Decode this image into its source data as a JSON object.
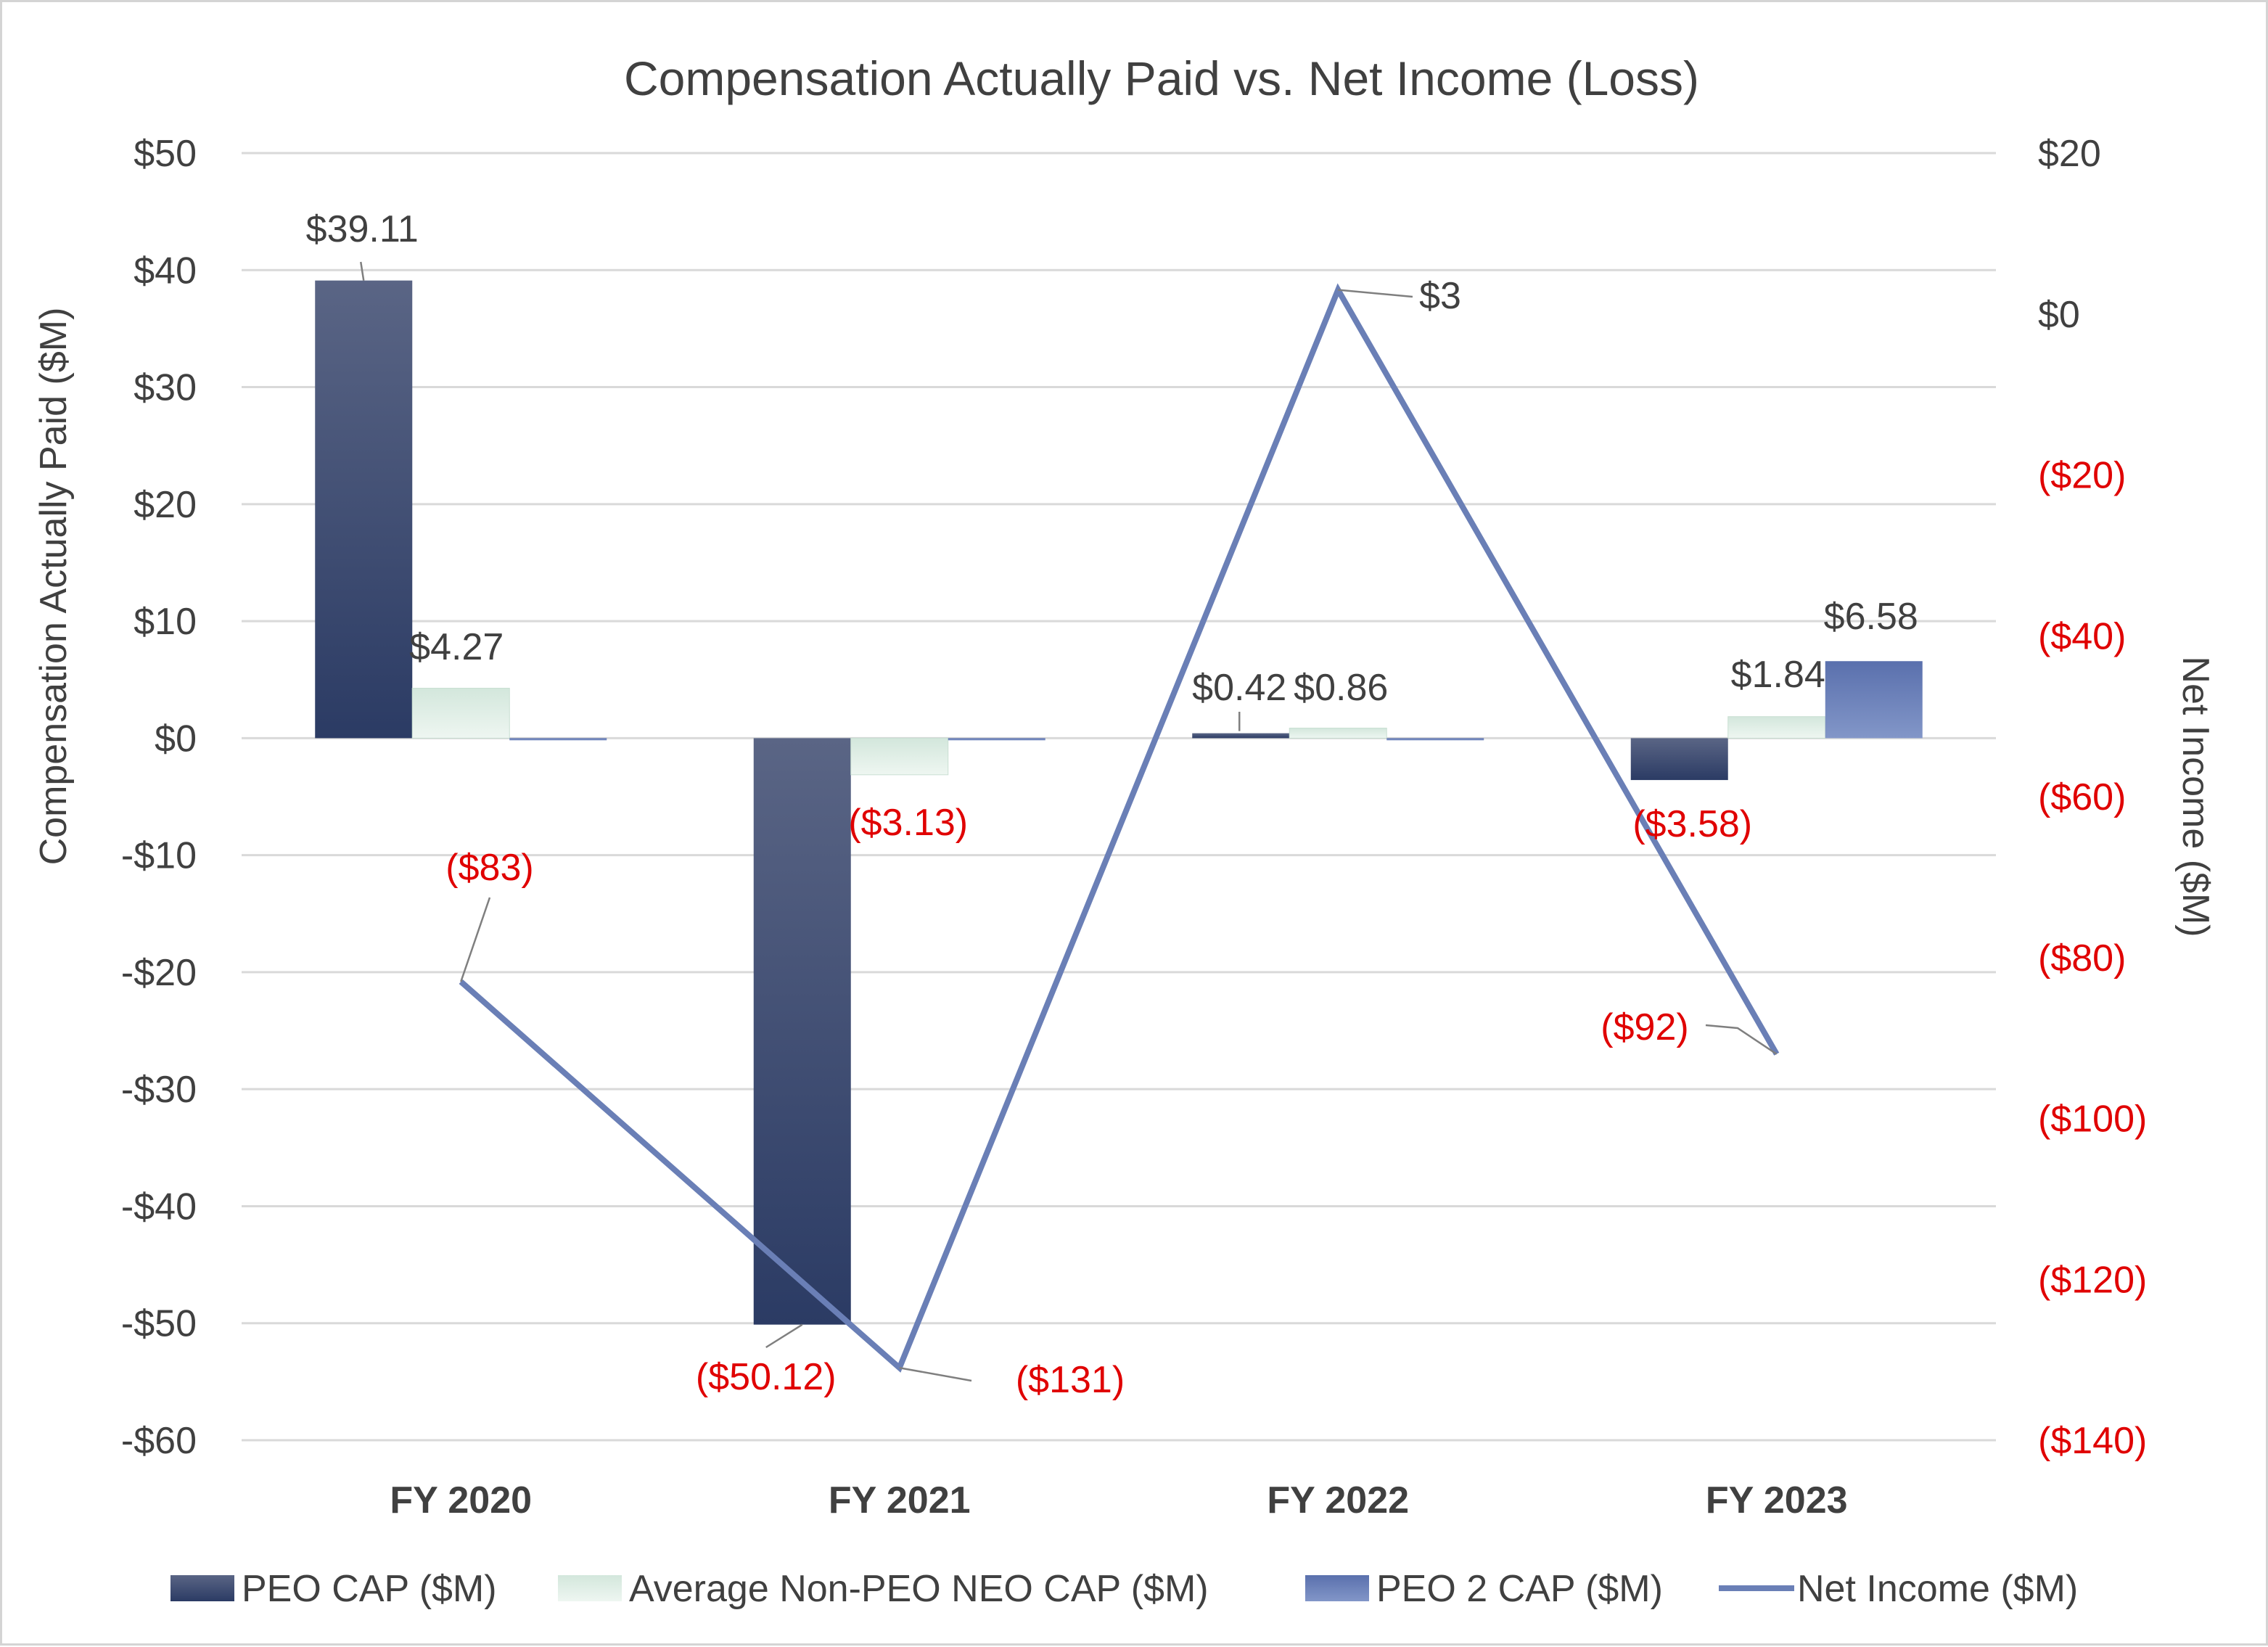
{
  "chart_data": {
    "type": "bar+line",
    "title": "Compensation Actually Paid vs. Net Income (Loss)",
    "categories": [
      "FY 2020",
      "FY 2021",
      "FY 2022",
      "FY 2023"
    ],
    "y_left": {
      "label": "Compensation Actually Paid ($M)",
      "range": [
        -60,
        50
      ],
      "ticks": [
        50,
        40,
        30,
        20,
        10,
        0,
        -10,
        -20,
        -30,
        -40,
        -50,
        -60
      ],
      "tick_labels": [
        "$50",
        "$40",
        "$30",
        "$20",
        "$10",
        "$0",
        "-$10",
        "-$20",
        "-$30",
        "-$40",
        "-$50",
        "-$60"
      ]
    },
    "y_right": {
      "label": "Net Income ($M)",
      "range": [
        -140,
        20
      ],
      "ticks": [
        20,
        0,
        -20,
        -40,
        -60,
        -80,
        -100,
        -120,
        -140
      ],
      "tick_labels": [
        "$20",
        "$0",
        "($20)",
        "($40)",
        "($60)",
        "($80)",
        "($100)",
        "($120)",
        "($140)"
      ]
    },
    "series": [
      {
        "name": "PEO CAP ($M)",
        "kind": "bar",
        "color": "#2f3f67",
        "values": [
          39.11,
          -50.12,
          0.42,
          -3.58
        ],
        "labels": [
          "$39.11",
          "($50.12)",
          "$0.42",
          "($3.58)"
        ]
      },
      {
        "name": "Average Non-PEO NEO CAP ($M)",
        "kind": "bar",
        "color": "#dcebe3",
        "values": [
          4.27,
          -3.13,
          0.86,
          1.84
        ],
        "labels": [
          "$4.27",
          "($3.13)",
          "$0.86",
          "$1.84"
        ]
      },
      {
        "name": "PEO 2 CAP ($M)",
        "kind": "bar",
        "color": "#6c82bb",
        "values": [
          0,
          0,
          0,
          6.58
        ],
        "labels": [
          "",
          "",
          "",
          "$6.58"
        ]
      },
      {
        "name": "Net Income ($M)",
        "kind": "line",
        "axis": "right",
        "color": "#6a7fb6",
        "values": [
          -83,
          -131,
          3,
          -92
        ],
        "labels": [
          "($83)",
          "($131)",
          "$3",
          "($92)"
        ]
      }
    ],
    "negative_label_color": "#e00000",
    "legend_position": "bottom"
  }
}
